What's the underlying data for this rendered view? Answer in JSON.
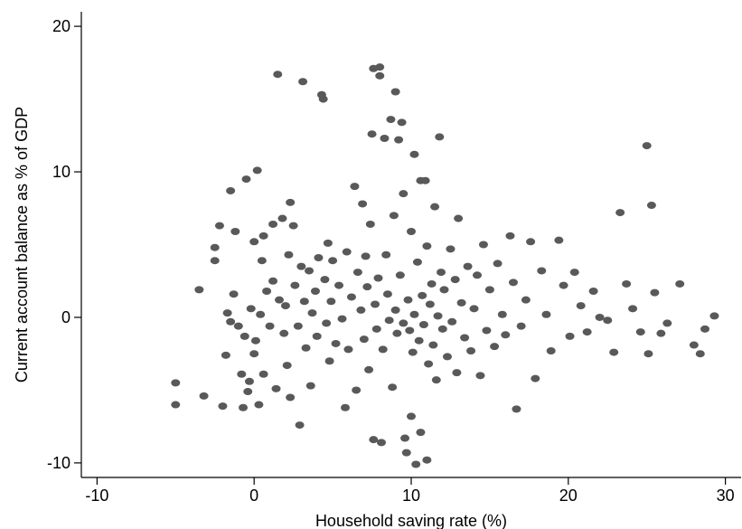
{
  "chart_data": {
    "type": "scatter",
    "title": "",
    "xlabel": "Household saving rate (%)",
    "ylabel": "Current account balance as % of GDP",
    "xlim": [
      -11,
      31
    ],
    "ylim": [
      -11,
      21
    ],
    "x_ticks": [
      -10,
      0,
      10,
      20,
      30
    ],
    "y_ticks": [
      -10,
      0,
      10,
      20
    ],
    "grid": false,
    "legend": "none",
    "marker_color": "#595959",
    "points": [
      [
        -5,
        -4.5
      ],
      [
        -5,
        -6.0
      ],
      [
        -3.5,
        1.9
      ],
      [
        -3.2,
        -5.4
      ],
      [
        -2.5,
        3.9
      ],
      [
        -2.5,
        4.8
      ],
      [
        -2.2,
        6.3
      ],
      [
        -2.0,
        -6.1
      ],
      [
        -1.8,
        -2.6
      ],
      [
        -1.7,
        0.3
      ],
      [
        -1.5,
        8.7
      ],
      [
        -1.5,
        -0.3
      ],
      [
        -1.3,
        1.6
      ],
      [
        -1.2,
        5.9
      ],
      [
        -1.0,
        -0.6
      ],
      [
        -0.8,
        -3.9
      ],
      [
        -0.7,
        -6.2
      ],
      [
        -0.6,
        -1.3
      ],
      [
        -0.5,
        9.5
      ],
      [
        -0.4,
        -5.1
      ],
      [
        -0.3,
        -4.4
      ],
      [
        -0.2,
        0.6
      ],
      [
        0.0,
        -2.5
      ],
      [
        0.0,
        5.2
      ],
      [
        0.1,
        -1.6
      ],
      [
        0.2,
        10.1
      ],
      [
        0.3,
        -6.0
      ],
      [
        0.4,
        0.2
      ],
      [
        0.5,
        3.9
      ],
      [
        0.6,
        5.6
      ],
      [
        0.6,
        -3.9
      ],
      [
        0.8,
        1.8
      ],
      [
        1.0,
        -0.6
      ],
      [
        1.2,
        6.4
      ],
      [
        1.2,
        2.5
      ],
      [
        1.4,
        -4.9
      ],
      [
        1.5,
        16.7
      ],
      [
        1.6,
        1.2
      ],
      [
        1.8,
        6.8
      ],
      [
        1.9,
        -1.1
      ],
      [
        2.0,
        0.8
      ],
      [
        2.1,
        -3.3
      ],
      [
        2.2,
        4.3
      ],
      [
        2.3,
        7.9
      ],
      [
        2.3,
        -5.5
      ],
      [
        2.5,
        6.3
      ],
      [
        2.6,
        2.2
      ],
      [
        2.8,
        -0.6
      ],
      [
        2.9,
        -7.4
      ],
      [
        3.0,
        3.5
      ],
      [
        3.1,
        16.2
      ],
      [
        3.2,
        1.1
      ],
      [
        3.3,
        -2.1
      ],
      [
        3.5,
        3.2
      ],
      [
        3.6,
        -4.7
      ],
      [
        3.7,
        0.3
      ],
      [
        3.9,
        1.8
      ],
      [
        4.0,
        -1.3
      ],
      [
        4.1,
        4.1
      ],
      [
        4.3,
        15.3
      ],
      [
        4.4,
        15.0
      ],
      [
        4.5,
        2.6
      ],
      [
        4.6,
        -0.4
      ],
      [
        4.7,
        5.1
      ],
      [
        4.8,
        -3.0
      ],
      [
        4.9,
        1.1
      ],
      [
        5.0,
        3.9
      ],
      [
        5.2,
        -1.8
      ],
      [
        5.4,
        2.2
      ],
      [
        5.6,
        -0.1
      ],
      [
        5.8,
        -6.2
      ],
      [
        5.9,
        4.5
      ],
      [
        6.0,
        -2.2
      ],
      [
        6.2,
        1.4
      ],
      [
        6.4,
        9.0
      ],
      [
        6.5,
        -5.0
      ],
      [
        6.6,
        3.1
      ],
      [
        6.8,
        0.5
      ],
      [
        6.9,
        7.8
      ],
      [
        7.0,
        -1.5
      ],
      [
        7.1,
        4.2
      ],
      [
        7.2,
        2.1
      ],
      [
        7.3,
        -3.6
      ],
      [
        7.4,
        6.4
      ],
      [
        7.5,
        12.6
      ],
      [
        7.6,
        17.1
      ],
      [
        7.6,
        -8.4
      ],
      [
        7.7,
        0.9
      ],
      [
        7.8,
        -0.8
      ],
      [
        7.9,
        2.7
      ],
      [
        8.0,
        17.2
      ],
      [
        8.0,
        16.6
      ],
      [
        8.1,
        -8.6
      ],
      [
        8.2,
        -2.2
      ],
      [
        8.3,
        12.3
      ],
      [
        8.4,
        4.3
      ],
      [
        8.5,
        1.6
      ],
      [
        8.6,
        -0.2
      ],
      [
        8.7,
        13.6
      ],
      [
        8.8,
        -4.8
      ],
      [
        8.9,
        7.0
      ],
      [
        9.0,
        15.5
      ],
      [
        9.0,
        0.5
      ],
      [
        9.1,
        -1.1
      ],
      [
        9.2,
        12.2
      ],
      [
        9.3,
        2.9
      ],
      [
        9.4,
        13.4
      ],
      [
        9.5,
        8.5
      ],
      [
        9.5,
        -0.4
      ],
      [
        9.6,
        -8.3
      ],
      [
        9.7,
        -9.3
      ],
      [
        9.8,
        1.2
      ],
      [
        9.9,
        -0.9
      ],
      [
        10.0,
        5.9
      ],
      [
        10.0,
        -6.8
      ],
      [
        10.1,
        -2.4
      ],
      [
        10.2,
        11.2
      ],
      [
        10.2,
        0.2
      ],
      [
        10.3,
        -10.1
      ],
      [
        10.4,
        3.8
      ],
      [
        10.5,
        -1.6
      ],
      [
        10.6,
        9.4
      ],
      [
        10.6,
        -7.9
      ],
      [
        10.7,
        1.5
      ],
      [
        10.8,
        -0.5
      ],
      [
        10.9,
        9.4
      ],
      [
        11.0,
        4.9
      ],
      [
        11.0,
        -9.8
      ],
      [
        11.1,
        -3.2
      ],
      [
        11.2,
        0.9
      ],
      [
        11.3,
        2.3
      ],
      [
        11.4,
        -1.9
      ],
      [
        11.5,
        7.6
      ],
      [
        11.6,
        -4.3
      ],
      [
        11.7,
        0.1
      ],
      [
        11.8,
        12.4
      ],
      [
        11.9,
        3.1
      ],
      [
        12.0,
        -0.8
      ],
      [
        12.1,
        1.9
      ],
      [
        12.3,
        -2.7
      ],
      [
        12.5,
        4.7
      ],
      [
        12.6,
        -0.3
      ],
      [
        12.8,
        2.6
      ],
      [
        12.9,
        -3.8
      ],
      [
        13.0,
        6.8
      ],
      [
        13.2,
        1.0
      ],
      [
        13.4,
        -1.4
      ],
      [
        13.6,
        3.5
      ],
      [
        13.8,
        -2.3
      ],
      [
        14.0,
        0.6
      ],
      [
        14.2,
        2.9
      ],
      [
        14.4,
        -4.0
      ],
      [
        14.6,
        5.0
      ],
      [
        14.8,
        -0.9
      ],
      [
        15.0,
        1.9
      ],
      [
        15.3,
        -2.0
      ],
      [
        15.5,
        3.7
      ],
      [
        15.8,
        0.2
      ],
      [
        16.0,
        -1.2
      ],
      [
        16.3,
        5.6
      ],
      [
        16.5,
        2.4
      ],
      [
        16.7,
        -6.3
      ],
      [
        17.0,
        -0.6
      ],
      [
        17.3,
        1.2
      ],
      [
        17.6,
        5.2
      ],
      [
        17.9,
        -4.2
      ],
      [
        18.3,
        3.2
      ],
      [
        18.6,
        0.2
      ],
      [
        18.9,
        -2.3
      ],
      [
        19.4,
        5.3
      ],
      [
        19.7,
        2.2
      ],
      [
        20.1,
        -1.3
      ],
      [
        20.4,
        3.1
      ],
      [
        20.8,
        0.8
      ],
      [
        21.2,
        -1.0
      ],
      [
        21.6,
        1.8
      ],
      [
        22.0,
        0.0
      ],
      [
        22.5,
        -0.2
      ],
      [
        22.9,
        -2.4
      ],
      [
        23.3,
        7.2
      ],
      [
        23.7,
        2.3
      ],
      [
        24.1,
        0.6
      ],
      [
        24.6,
        -1.0
      ],
      [
        25.0,
        11.8
      ],
      [
        25.1,
        -2.5
      ],
      [
        25.3,
        7.7
      ],
      [
        25.5,
        1.7
      ],
      [
        25.9,
        -1.1
      ],
      [
        26.3,
        -0.4
      ],
      [
        27.1,
        2.3
      ],
      [
        28.0,
        -1.9
      ],
      [
        28.4,
        -2.5
      ],
      [
        28.7,
        -0.8
      ],
      [
        29.3,
        0.1
      ]
    ]
  },
  "axes": {
    "x_tick_labels": [
      "-10",
      "0",
      "10",
      "20",
      "30"
    ],
    "y_tick_labels": [
      "-10",
      "0",
      "10",
      "20"
    ]
  }
}
